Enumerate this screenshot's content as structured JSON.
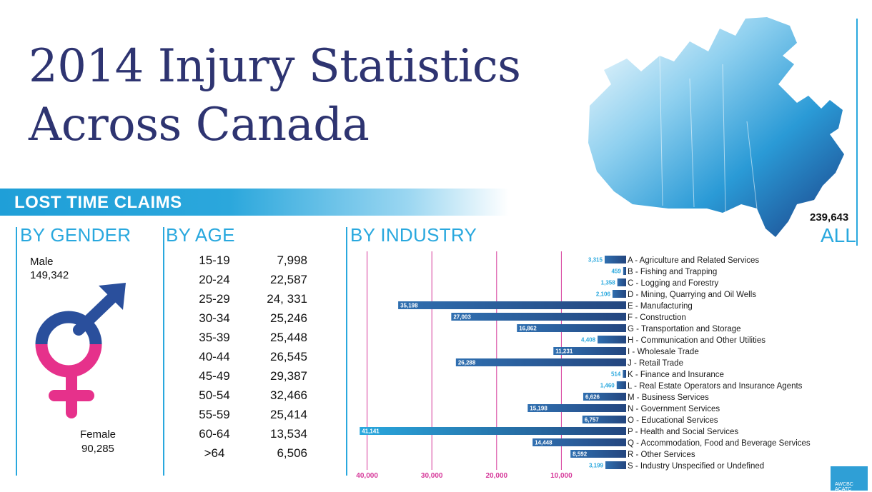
{
  "title": {
    "line1": "2014 Injury Statistics",
    "line2": "Across Canada"
  },
  "banner": "LOST TIME CLAIMS",
  "total": {
    "value": "239,643",
    "label": "ALL"
  },
  "gender": {
    "heading": "BY GENDER",
    "male_label": "Male",
    "male_value": "149,342",
    "female_label": "Female",
    "female_value": "90,285",
    "colors": {
      "male": "#2a4f9c",
      "female": "#e6318b"
    }
  },
  "age": {
    "heading": "BY AGE",
    "rows": [
      {
        "range": "15-19",
        "value": "7,998"
      },
      {
        "range": "20-24",
        "value": "22,587"
      },
      {
        "range": "25-29",
        "value": "24, 331"
      },
      {
        "range": "30-34",
        "value": "25,246"
      },
      {
        "range": "35-39",
        "value": "25,448"
      },
      {
        "range": "40-44",
        "value": "26,545"
      },
      {
        "range": "45-49",
        "value": "29,387"
      },
      {
        "range": "50-54",
        "value": "32,466"
      },
      {
        "range": "55-59",
        "value": "25,414"
      },
      {
        "range": "60-64",
        "value": "13,534"
      },
      {
        "range": ">64",
        "value": "6,506"
      }
    ]
  },
  "industry": {
    "heading": "BY INDUSTRY"
  },
  "colors": {
    "accent": "#29a8de",
    "title": "#2e3471",
    "grid": "#d6399a",
    "bar_dark": "#24467f",
    "bar_light": "#29a8de"
  },
  "chart_data": {
    "type": "bar",
    "orientation": "horizontal",
    "xlim": [
      0,
      42000
    ],
    "xticks": [
      40000,
      30000,
      20000,
      10000
    ],
    "xtick_labels": [
      "40,000",
      "30,000",
      "20,000",
      "10,000"
    ],
    "categories": [
      {
        "code": "A",
        "name": "Agriculture and Related Services",
        "value": 3315,
        "label": "3,315"
      },
      {
        "code": "B",
        "name": "Fishing and Trapping",
        "value": 459,
        "label": "459"
      },
      {
        "code": "C",
        "name": "Logging and Forestry",
        "value": 1358,
        "label": "1,358"
      },
      {
        "code": "D",
        "name": "Mining, Quarrying and Oil Wells",
        "value": 2106,
        "label": "2,106"
      },
      {
        "code": "E",
        "name": "Manufacturing",
        "value": 35198,
        "label": "35,198"
      },
      {
        "code": "F",
        "name": "Construction",
        "value": 27003,
        "label": "27,003"
      },
      {
        "code": "G",
        "name": "Transportation and Storage",
        "value": 16862,
        "label": "16,862"
      },
      {
        "code": "H",
        "name": "Communication and Other Utilities",
        "value": 4408,
        "label": "4,408"
      },
      {
        "code": "I",
        "name": "Wholesale Trade",
        "value": 11231,
        "label": "11,231"
      },
      {
        "code": "J",
        "name": "Retail Trade",
        "value": 26288,
        "label": "26,288"
      },
      {
        "code": "K",
        "name": "Finance and Insurance",
        "value": 514,
        "label": "514"
      },
      {
        "code": "L",
        "name": "Real Estate Operators and Insurance Agents",
        "value": 1460,
        "label": "1,460"
      },
      {
        "code": "M",
        "name": "Business Services",
        "value": 6626,
        "label": "6,626"
      },
      {
        "code": "N",
        "name": "Government Services",
        "value": 15198,
        "label": "15,198"
      },
      {
        "code": "O",
        "name": "Educational Services",
        "value": 6757,
        "label": "6,757"
      },
      {
        "code": "P",
        "name": "Health and Social Services",
        "value": 41141,
        "label": "41,141"
      },
      {
        "code": "Q",
        "name": "Accommodation, Food and Beverage Services",
        "value": 14448,
        "label": "14,448"
      },
      {
        "code": "R",
        "name": "Other Services",
        "value": 8592,
        "label": "8,592"
      },
      {
        "code": "S",
        "name": "Industry Unspecified or Undefined",
        "value": 3199,
        "label": "3,199"
      }
    ]
  }
}
